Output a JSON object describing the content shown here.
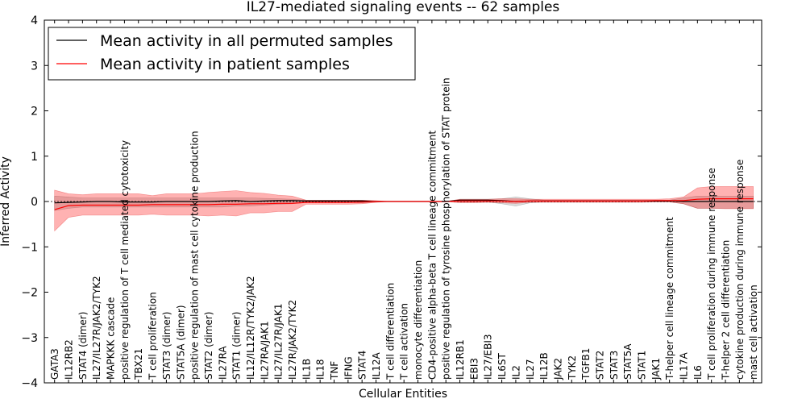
{
  "chart_data": {
    "type": "line",
    "title": "IL27-mediated signaling events -- 62 samples",
    "xlabel": "Cellular Entities",
    "ylabel": "Inferred Activity",
    "ylim": [
      -4,
      4
    ],
    "yticks": [
      -4,
      -3,
      -2,
      -1,
      0,
      1,
      2,
      3,
      4
    ],
    "ytick_labels": [
      "−4",
      "−3",
      "−2",
      "−1",
      "0",
      "1",
      "2",
      "3",
      "4"
    ],
    "legend_position": "top-left",
    "categories": [
      "GATA3",
      "IL12RB2",
      "STAT4 (dimer)",
      "IL27/IL27R/JAK2/TYK2",
      "MAPKKK cascade",
      "positive regulation of T cell mediated cytotoxicity",
      "TBX21",
      "T cell proliferation",
      "STAT3 (dimer)",
      "STAT5A (dimer)",
      "positive regulation of mast cell cytokine production",
      "STAT2 (dimer)",
      "IL27RA",
      "STAT1 (dimer)",
      "IL12/IL12R/TYK2/JAK2",
      "IL27RA/JAK1",
      "IL27/IL27R/JAK1",
      "IL27R/JAK2/TYK2",
      "IL1B",
      "IL18",
      "TNF",
      "IFNG",
      "STAT4",
      "IL12A",
      "T cell differentiation",
      "T cell activation",
      "monocyte differentiation",
      "CD4-positive alpha-beta T cell lineage commitment",
      "positive regulation of tyrosine phosphorylation of STAT protein",
      "IL12RB1",
      "EBI3",
      "IL27/EBI3",
      "IL6ST",
      "IL2",
      "IL27",
      "IL12B",
      "JAK2",
      "TYK2",
      "TGFB1",
      "STAT2",
      "STAT3",
      "STAT5A",
      "STAT1",
      "JAK1",
      "T-helper cell lineage commitment",
      "IL17A",
      "IL6",
      "T cell proliferation during immune response",
      "T-helper 2 cell differentiation",
      "cytokine production during immune response",
      "mast cell activation"
    ],
    "series": [
      {
        "name": "Mean activity in all permuted samples",
        "color": "#000000",
        "values": [
          -0.03,
          -0.02,
          -0.01,
          0.0,
          0.0,
          -0.01,
          -0.01,
          -0.01,
          0.0,
          0.0,
          0.0,
          0.0,
          0.01,
          0.02,
          0.0,
          0.01,
          0.02,
          0.02,
          0.01,
          0.01,
          0.01,
          0.01,
          0.01,
          0.0,
          0.0,
          0.0,
          0.0,
          0.0,
          0.0,
          0.03,
          0.03,
          0.03,
          0.02,
          0.0,
          0.01,
          0.01,
          0.01,
          0.01,
          0.01,
          0.01,
          0.01,
          0.01,
          0.01,
          0.01,
          0.01,
          0.0,
          0.0,
          0.0,
          0.0,
          0.0,
          0.0
        ],
        "band_low": [
          -0.2,
          -0.15,
          -0.12,
          -0.12,
          -0.12,
          -0.12,
          -0.12,
          -0.12,
          -0.12,
          -0.12,
          -0.12,
          -0.12,
          -0.12,
          -0.1,
          -0.1,
          -0.08,
          -0.06,
          -0.05,
          -0.02,
          -0.02,
          -0.02,
          -0.02,
          -0.03,
          -0.01,
          0.0,
          0.0,
          0.0,
          0.0,
          0.0,
          -0.01,
          -0.01,
          -0.01,
          -0.05,
          -0.1,
          -0.03,
          -0.01,
          -0.01,
          -0.01,
          -0.01,
          -0.01,
          -0.01,
          -0.01,
          -0.01,
          -0.01,
          -0.01,
          -0.05,
          -0.15,
          -0.15,
          -0.15,
          -0.15,
          -0.15
        ],
        "band_high": [
          0.12,
          0.1,
          0.08,
          0.08,
          0.08,
          0.08,
          0.08,
          0.08,
          0.08,
          0.08,
          0.08,
          0.08,
          0.08,
          0.08,
          0.08,
          0.07,
          0.06,
          0.05,
          0.03,
          0.03,
          0.03,
          0.03,
          0.03,
          0.01,
          0.0,
          0.0,
          0.0,
          0.0,
          0.0,
          0.05,
          0.05,
          0.05,
          0.06,
          0.1,
          0.06,
          0.03,
          0.03,
          0.03,
          0.03,
          0.03,
          0.03,
          0.03,
          0.03,
          0.03,
          0.03,
          0.08,
          0.12,
          0.12,
          0.12,
          0.12,
          0.12
        ]
      },
      {
        "name": "Mean activity in patient samples",
        "color": "#ff0000",
        "values": [
          -0.18,
          -0.09,
          -0.08,
          -0.08,
          -0.08,
          -0.08,
          -0.08,
          -0.07,
          -0.07,
          -0.07,
          -0.07,
          -0.07,
          -0.06,
          -0.06,
          -0.05,
          -0.05,
          -0.04,
          -0.04,
          -0.02,
          -0.02,
          -0.02,
          -0.02,
          -0.01,
          0.0,
          0.0,
          0.0,
          0.0,
          0.0,
          0.0,
          0.01,
          0.01,
          0.01,
          0.01,
          0.0,
          0.01,
          0.01,
          0.01,
          0.01,
          0.01,
          0.01,
          0.01,
          0.01,
          0.01,
          0.02,
          0.02,
          0.02,
          0.05,
          0.06,
          0.06,
          0.06,
          0.06
        ],
        "band_low": [
          -0.65,
          -0.35,
          -0.3,
          -0.3,
          -0.3,
          -0.3,
          -0.3,
          -0.28,
          -0.3,
          -0.3,
          -0.3,
          -0.32,
          -0.3,
          -0.32,
          -0.25,
          -0.25,
          -0.22,
          -0.22,
          -0.06,
          -0.06,
          -0.06,
          -0.06,
          -0.05,
          -0.02,
          0.0,
          0.0,
          0.0,
          0.0,
          0.0,
          -0.03,
          -0.03,
          -0.02,
          -0.03,
          -0.04,
          -0.02,
          -0.02,
          -0.02,
          -0.02,
          -0.02,
          -0.02,
          -0.02,
          -0.02,
          -0.02,
          -0.01,
          -0.01,
          -0.05,
          -0.15,
          -0.15,
          -0.16,
          -0.16,
          -0.16
        ],
        "band_high": [
          0.25,
          0.17,
          0.15,
          0.17,
          0.17,
          0.17,
          0.17,
          0.13,
          0.17,
          0.17,
          0.17,
          0.2,
          0.22,
          0.24,
          0.2,
          0.18,
          0.14,
          0.12,
          0.03,
          0.03,
          0.03,
          0.03,
          0.03,
          0.02,
          0.0,
          0.0,
          0.0,
          0.0,
          0.0,
          0.05,
          0.05,
          0.05,
          0.06,
          0.06,
          0.05,
          0.05,
          0.05,
          0.05,
          0.05,
          0.05,
          0.05,
          0.05,
          0.05,
          0.05,
          0.06,
          0.1,
          0.3,
          0.33,
          0.33,
          0.33,
          0.33
        ]
      }
    ],
    "baseline": 0
  }
}
